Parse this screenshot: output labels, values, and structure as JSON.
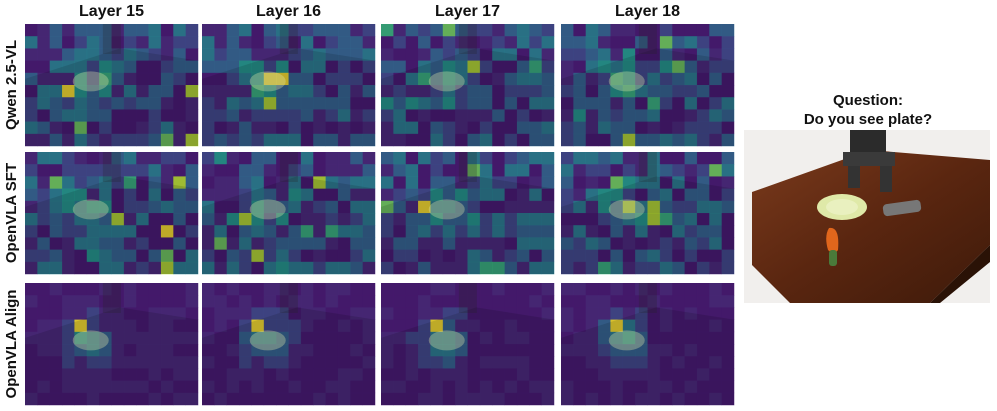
{
  "columns": [
    "Layer 15",
    "Layer 16",
    "Layer 17",
    "Layer 18"
  ],
  "rows": [
    "Qwen 2.5-VL",
    "OpenVLA SFT",
    "OpenVLA Align"
  ],
  "question": {
    "title": "Question:",
    "text": "Do you see plate?"
  }
}
